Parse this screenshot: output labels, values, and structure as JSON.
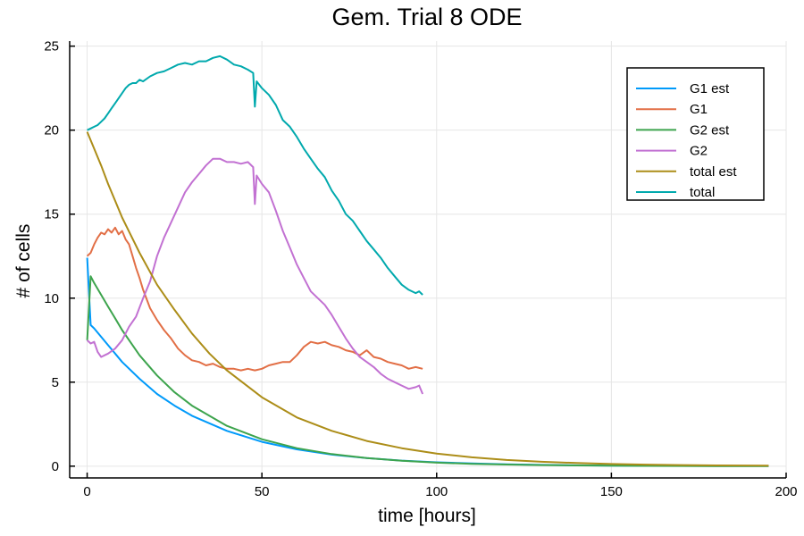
{
  "chart_data": {
    "type": "line",
    "title": "Gem. Trial 8 ODE",
    "xlabel": "time [hours]",
    "ylabel": "# of cells",
    "xlim": [
      -5,
      200
    ],
    "ylim": [
      -0.7,
      25.3
    ],
    "xticks": [
      0,
      50,
      100,
      150,
      200
    ],
    "yticks": [
      0,
      5,
      10,
      15,
      20,
      25
    ],
    "grid": true,
    "legend_position": "top-right",
    "series": [
      {
        "name": "G1 est",
        "color": "#009AFA",
        "x": [
          0,
          1,
          2,
          4,
          6,
          8,
          10,
          15,
          20,
          25,
          30,
          40,
          50,
          60,
          70,
          80,
          90,
          100,
          110,
          120,
          130,
          140,
          150,
          160,
          170,
          180,
          195
        ],
        "y": [
          12.4,
          8.4,
          8.2,
          7.7,
          7.2,
          6.7,
          6.2,
          5.2,
          4.3,
          3.6,
          3.0,
          2.1,
          1.45,
          1.0,
          0.69,
          0.48,
          0.33,
          0.23,
          0.16,
          0.11,
          0.075,
          0.05,
          0.035,
          0.024,
          0.017,
          0.012,
          0.01
        ]
      },
      {
        "name": "G1",
        "color": "#E26F46",
        "x": [
          0,
          1,
          2,
          3,
          4,
          5,
          6,
          7,
          8,
          9,
          10,
          11,
          12,
          13,
          14,
          15,
          16,
          18,
          20,
          22,
          24,
          26,
          28,
          30,
          32,
          34,
          36,
          38,
          40,
          42,
          44,
          46,
          48,
          50,
          52,
          54,
          56,
          58,
          60,
          62,
          64,
          66,
          68,
          70,
          72,
          74,
          76,
          78,
          80,
          82,
          84,
          86,
          88,
          90,
          92,
          94,
          96
        ],
        "y": [
          12.5,
          12.7,
          13.2,
          13.6,
          13.9,
          13.8,
          14.1,
          13.9,
          14.2,
          13.8,
          14.0,
          13.5,
          13.2,
          12.5,
          11.8,
          11.2,
          10.5,
          9.4,
          8.7,
          8.1,
          7.6,
          7.0,
          6.6,
          6.3,
          6.2,
          6.0,
          6.1,
          5.9,
          5.8,
          5.8,
          5.7,
          5.8,
          5.7,
          5.8,
          6.0,
          6.1,
          6.2,
          6.2,
          6.6,
          7.1,
          7.4,
          7.3,
          7.4,
          7.2,
          7.1,
          6.9,
          6.8,
          6.6,
          6.9,
          6.5,
          6.4,
          6.2,
          6.1,
          6.0,
          5.8,
          5.9,
          5.8
        ]
      },
      {
        "name": "G2 est",
        "color": "#3DA44D",
        "x": [
          0,
          1,
          2,
          4,
          6,
          8,
          10,
          15,
          20,
          25,
          30,
          40,
          50,
          60,
          70,
          80,
          90,
          100,
          110,
          120,
          130,
          140,
          150,
          160,
          170,
          180,
          195
        ],
        "y": [
          7.5,
          11.3,
          10.9,
          10.2,
          9.5,
          8.8,
          8.1,
          6.6,
          5.4,
          4.4,
          3.6,
          2.4,
          1.6,
          1.07,
          0.72,
          0.48,
          0.32,
          0.21,
          0.14,
          0.095,
          0.063,
          0.042,
          0.028,
          0.019,
          0.013,
          0.009,
          0.006
        ]
      },
      {
        "name": "G2",
        "color": "#C271D2",
        "x": [
          0,
          1,
          2,
          3,
          4,
          5,
          6,
          8,
          10,
          12,
          14,
          16,
          18,
          20,
          22,
          24,
          26,
          28,
          30,
          32,
          34,
          36,
          38,
          40,
          42,
          44,
          46,
          47.5,
          48,
          48.5,
          50,
          52,
          54,
          56,
          58,
          60,
          62,
          64,
          66,
          68,
          70,
          72,
          74,
          76,
          78,
          80,
          82,
          84,
          86,
          88,
          90,
          92,
          94,
          95,
          96
        ],
        "y": [
          7.5,
          7.3,
          7.4,
          6.8,
          6.5,
          6.6,
          6.7,
          7.0,
          7.5,
          8.3,
          8.9,
          10.0,
          11.0,
          12.5,
          13.6,
          14.5,
          15.4,
          16.3,
          16.9,
          17.4,
          17.9,
          18.3,
          18.3,
          18.1,
          18.1,
          18.0,
          18.1,
          17.8,
          15.6,
          17.3,
          16.8,
          16.3,
          15.2,
          14.0,
          13.0,
          12.0,
          11.2,
          10.4,
          10.0,
          9.6,
          9.0,
          8.3,
          7.6,
          7.0,
          6.5,
          6.2,
          5.9,
          5.5,
          5.2,
          5.0,
          4.8,
          4.6,
          4.7,
          4.8,
          4.3
        ]
      },
      {
        "name": "total est",
        "color": "#AC8D18",
        "x": [
          0,
          2,
          4,
          6,
          8,
          10,
          15,
          20,
          25,
          30,
          35,
          40,
          50,
          60,
          70,
          80,
          90,
          100,
          110,
          120,
          130,
          140,
          150,
          160,
          170,
          180,
          195
        ],
        "y": [
          19.9,
          18.9,
          17.9,
          16.8,
          15.8,
          14.8,
          12.7,
          10.8,
          9.3,
          7.9,
          6.7,
          5.7,
          4.1,
          2.9,
          2.1,
          1.5,
          1.07,
          0.75,
          0.53,
          0.37,
          0.26,
          0.19,
          0.13,
          0.09,
          0.065,
          0.045,
          0.03
        ]
      },
      {
        "name": "total",
        "color": "#00A9AD",
        "x": [
          0,
          1,
          2,
          3,
          4,
          5,
          6,
          7,
          8,
          9,
          10,
          11,
          12,
          13,
          14,
          15,
          16,
          18,
          20,
          22,
          24,
          26,
          28,
          30,
          32,
          34,
          36,
          38,
          40,
          42,
          44,
          46,
          47.5,
          48,
          48.5,
          50,
          52,
          54,
          56,
          58,
          60,
          62,
          64,
          66,
          68,
          70,
          72,
          74,
          76,
          78,
          80,
          82,
          84,
          86,
          88,
          90,
          92,
          94,
          95,
          96
        ],
        "y": [
          20.0,
          20.1,
          20.2,
          20.3,
          20.5,
          20.7,
          21.0,
          21.3,
          21.6,
          21.9,
          22.2,
          22.5,
          22.7,
          22.8,
          22.8,
          23.0,
          22.9,
          23.2,
          23.4,
          23.5,
          23.7,
          23.9,
          24.0,
          23.9,
          24.1,
          24.1,
          24.3,
          24.4,
          24.2,
          23.9,
          23.8,
          23.6,
          23.4,
          21.4,
          22.9,
          22.5,
          22.1,
          21.5,
          20.6,
          20.2,
          19.6,
          18.9,
          18.3,
          17.7,
          17.2,
          16.4,
          15.8,
          15.0,
          14.6,
          14.0,
          13.4,
          12.9,
          12.4,
          11.8,
          11.3,
          10.8,
          10.5,
          10.3,
          10.4,
          10.2
        ]
      }
    ]
  }
}
